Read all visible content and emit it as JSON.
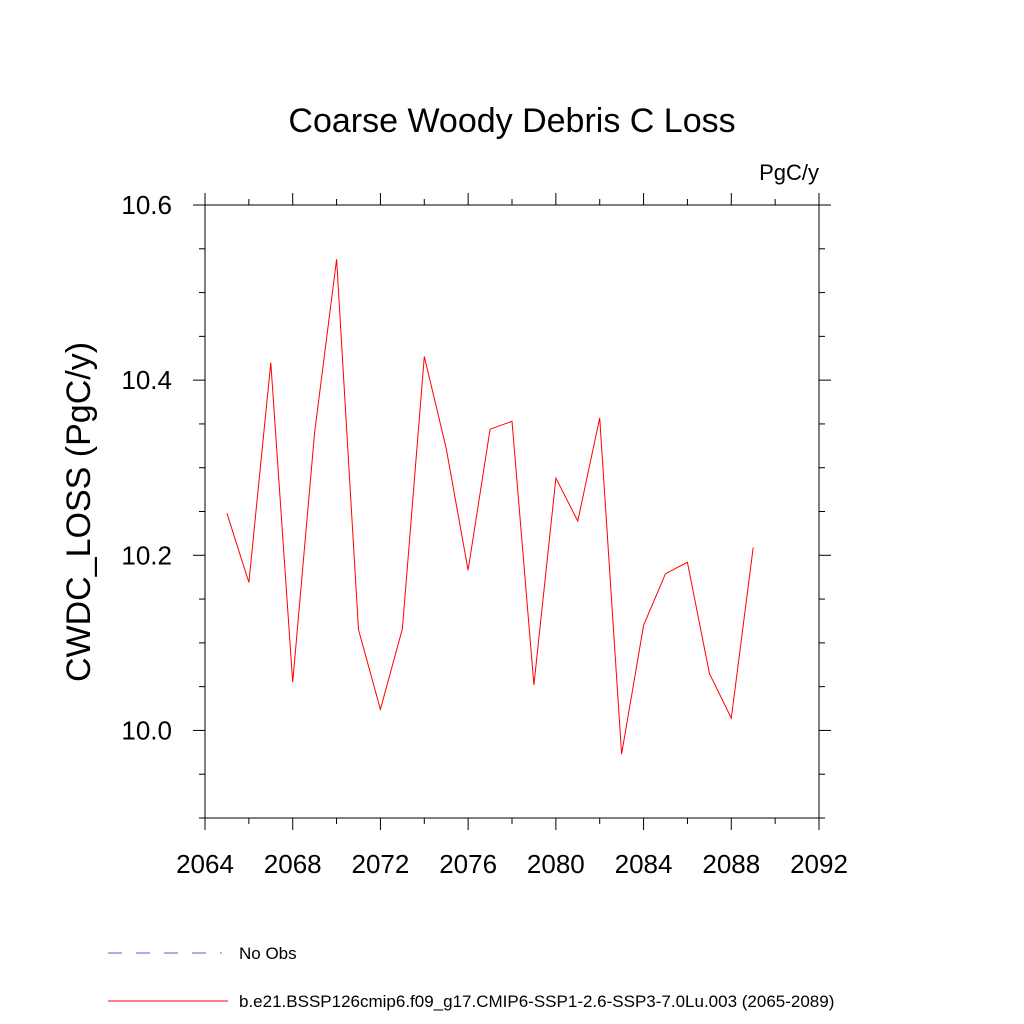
{
  "chart_data": {
    "type": "line",
    "title": "Coarse Woody Debris C Loss",
    "units_label": "PgC/y",
    "ylabel": "CWDC_LOSS  (PgC/y)",
    "xlabel": "",
    "xlim": [
      2064,
      2092
    ],
    "ylim": [
      9.9,
      10.6
    ],
    "x_ticks": [
      2064,
      2068,
      2072,
      2076,
      2080,
      2084,
      2088,
      2092
    ],
    "x_tick_labels": [
      "2064",
      "2068",
      "2072",
      "2076",
      "2080",
      "2084",
      "2088",
      "2092"
    ],
    "x_minor_step": 2,
    "y_ticks": [
      10.0,
      10.2,
      10.4,
      10.6
    ],
    "y_tick_labels": [
      "10.0",
      "10.2",
      "10.4",
      "10.6"
    ],
    "y_minor_step": 0.05,
    "grid": false,
    "series": [
      {
        "name": "b.e21.BSSP126cmip6.f09_g17.CMIP6-SSP1-2.6-SSP3-7.0Lu.003 (2065-2089)",
        "color": "#ff0000",
        "x": [
          2065,
          2066,
          2067,
          2068,
          2069,
          2070,
          2071,
          2072,
          2073,
          2074,
          2075,
          2076,
          2077,
          2078,
          2079,
          2080,
          2081,
          2082,
          2083,
          2084,
          2085,
          2086,
          2087,
          2088,
          2089
        ],
        "values": [
          10.248,
          10.169,
          10.42,
          10.055,
          10.34,
          10.538,
          10.115,
          10.024,
          10.116,
          10.427,
          10.322,
          10.183,
          10.344,
          10.353,
          10.052,
          10.288,
          10.239,
          10.357,
          9.973,
          10.12,
          10.179,
          10.192,
          10.065,
          10.014,
          10.209
        ]
      }
    ],
    "legend": {
      "placement": "bottom-left",
      "entries": [
        {
          "label": "No Obs",
          "style": "dashed",
          "color": "#6a5acd"
        },
        {
          "label": "b.e21.BSSP126cmip6.f09_g17.CMIP6-SSP1-2.6-SSP3-7.0Lu.003 (2065-2089)",
          "style": "solid",
          "color": "#ff0000"
        }
      ]
    }
  }
}
